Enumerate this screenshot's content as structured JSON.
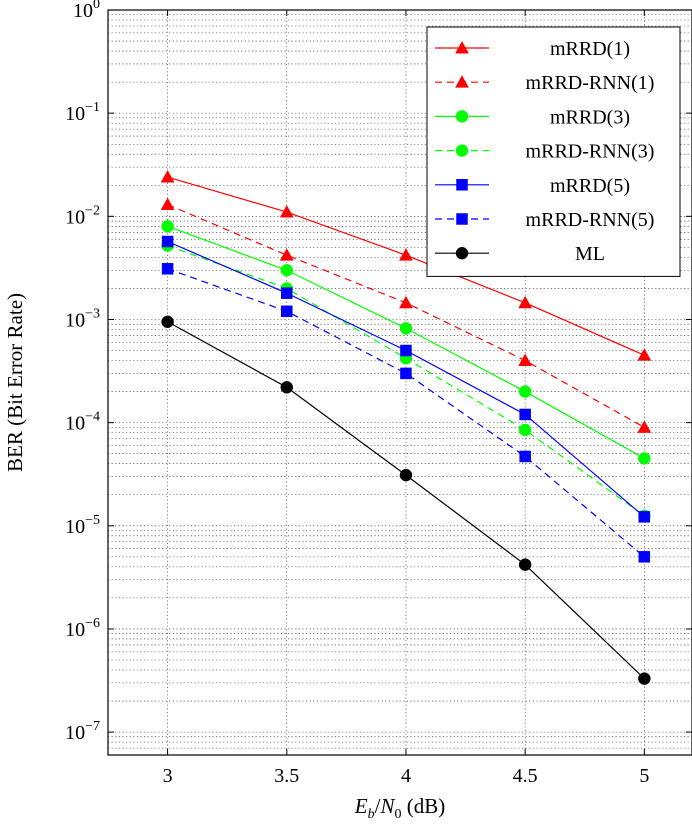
{
  "chart_data": {
    "type": "line",
    "xlabel": "E_b/N_0 (dB)",
    "ylabel": "BER (Bit Error Rate)",
    "x": [
      3,
      3.5,
      4,
      4.5,
      5
    ],
    "x_ticks": [
      "3",
      "3.5",
      "4",
      "4.5",
      "5"
    ],
    "xlim": [
      2.75,
      5.2
    ],
    "y_scale": "log",
    "ylim": [
      6e-08,
      1
    ],
    "y_tick_exponents": [
      "0",
      "−1",
      "−2",
      "−3",
      "−4",
      "−5",
      "−6",
      "−7"
    ],
    "grid": true,
    "legend_position": "top-right",
    "series": [
      {
        "name": "mRRD(1)",
        "color": "#ff0000",
        "dash": false,
        "marker": "triangle",
        "values": [
          0.024,
          0.011,
          0.0042,
          0.00145,
          0.00045
        ]
      },
      {
        "name": "mRRD-RNN(1)",
        "color": "#ff0000",
        "dash": true,
        "marker": "triangle",
        "values": [
          0.013,
          0.0042,
          0.00145,
          0.0004,
          9e-05
        ]
      },
      {
        "name": "mRRD(3)",
        "color": "#00ff00",
        "dash": false,
        "marker": "circle",
        "values": [
          0.008,
          0.003,
          0.00082,
          0.0002,
          4.5e-05
        ]
      },
      {
        "name": "mRRD-RNN(3)",
        "color": "#00ff00",
        "dash": true,
        "marker": "circle",
        "values": [
          0.0052,
          0.002,
          0.00042,
          8.5e-05,
          1.25e-05
        ]
      },
      {
        "name": "mRRD(5)",
        "color": "#0000ff",
        "dash": false,
        "marker": "square",
        "values": [
          0.0057,
          0.0018,
          0.0005,
          0.00012,
          1.22e-05
        ]
      },
      {
        "name": "mRRD-RNN(5)",
        "color": "#0000ff",
        "dash": true,
        "marker": "square",
        "values": [
          0.0031,
          0.0012,
          0.0003,
          4.7e-05,
          5e-06
        ]
      },
      {
        "name": "ML",
        "color": "#000000",
        "dash": false,
        "marker": "circle",
        "values": [
          0.00095,
          0.00022,
          3.1e-05,
          4.2e-06,
          3.3e-07
        ]
      }
    ]
  }
}
